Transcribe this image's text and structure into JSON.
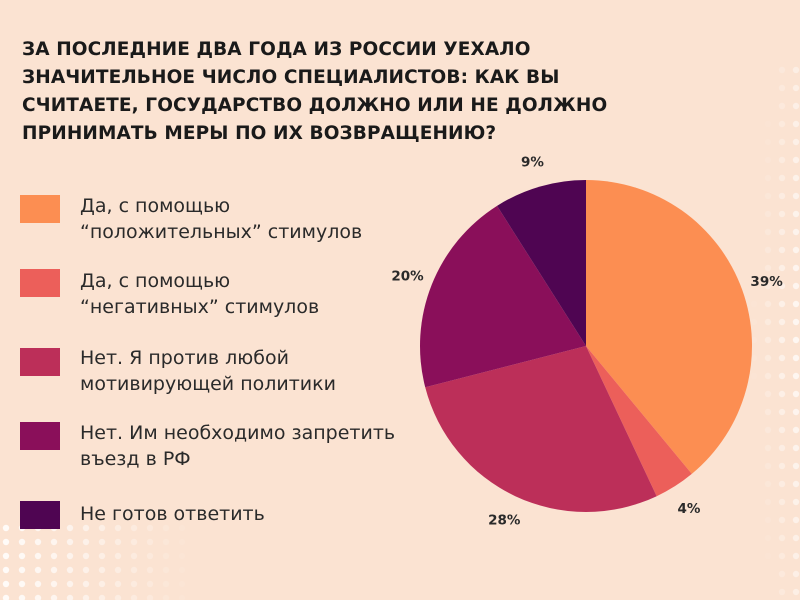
{
  "title_lines": [
    "ЗА ПОСЛЕДНИЕ ДВА ГОДА ИЗ РОССИИ УЕХАЛО",
    "ЗНАЧИТЕЛЬНОЕ ЧИСЛО СПЕЦИАЛИСТОВ: КАК ВЫ",
    "СЧИТАЕТЕ, ГОСУДАРСТВО ДОЛЖНО ИЛИ НЕ ДОЛЖНО",
    "ПРИНИМАТЬ МЕРЫ ПО ИХ ВОЗВРАЩЕНИЮ?"
  ],
  "chart_data": {
    "type": "pie",
    "title": "ЗА ПОСЛЕДНИЕ ДВА ГОДА ИЗ РОССИИ УЕХАЛО ЗНАЧИТЕЛЬНОЕ ЧИСЛО СПЕЦИАЛИСТОВ: КАК ВЫ СЧИТАЕТЕ, ГОСУДАРСТВО ДОЛЖНО ИЛИ НЕ ДОЛЖНО ПРИНИМАТЬ МЕРЫ ПО ИХ ВОЗВРАЩЕНИЮ?",
    "legend_position": "left",
    "slices": [
      {
        "label_lines": [
          "Да, с помощью",
          "“положительных” стимулов"
        ],
        "value": 39,
        "display": "39%",
        "color": "#fc8e52"
      },
      {
        "label_lines": [
          "Да, с помощью",
          "“негативных” стимулов"
        ],
        "value": 4,
        "display": "4%",
        "color": "#ec5f5a"
      },
      {
        "label_lines": [
          "Нет. Я против любой",
          "мотивирующей политики"
        ],
        "value": 28,
        "display": "28%",
        "color": "#bc2f59"
      },
      {
        "label_lines": [
          "Нет. Им необходимо запретить",
          "въезд в РФ"
        ],
        "value": 20,
        "display": "20%",
        "color": "#8a0f5a"
      },
      {
        "label_lines": [
          "Не готов ответить"
        ],
        "value": 9,
        "display": "9%",
        "color": "#4f0552"
      }
    ]
  }
}
